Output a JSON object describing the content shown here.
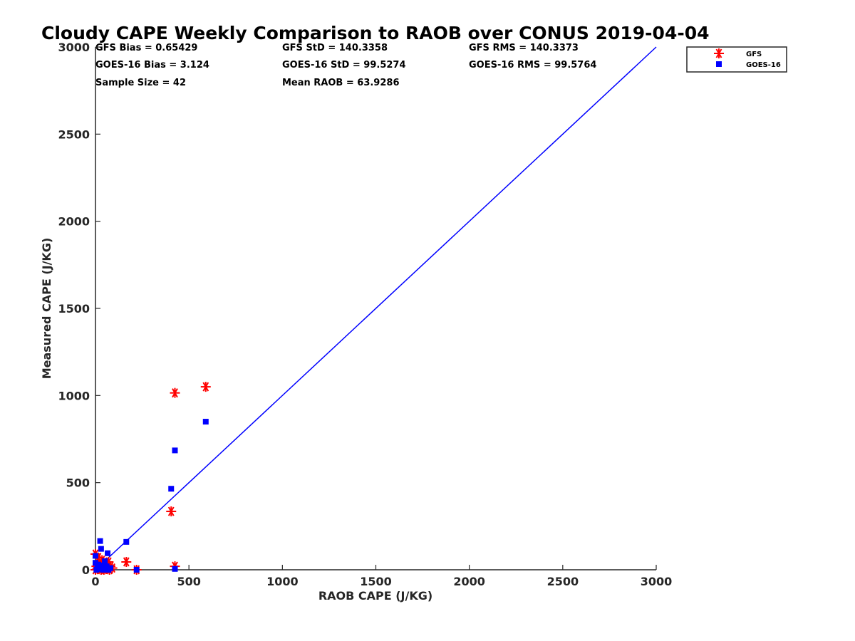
{
  "chart_data": {
    "type": "scatter",
    "title": "Cloudy CAPE Weekly Comparison to RAOB over CONUS 2019-04-04",
    "xlabel": "RAOB CAPE (J/KG)",
    "ylabel": "Measured CAPE (J/KG)",
    "xlim": [
      0,
      3000
    ],
    "ylim": [
      0,
      3000
    ],
    "xticks": [
      "0",
      "500",
      "1000",
      "1500",
      "2000",
      "2500",
      "3000"
    ],
    "yticks": [
      "0",
      "500",
      "1000",
      "1500",
      "2000",
      "2500",
      "3000"
    ],
    "grid": false,
    "legend_position": "top-right",
    "reference_line": {
      "x": [
        0,
        3000
      ],
      "y": [
        0,
        3000
      ],
      "color": "#0000ff"
    },
    "stats": {
      "gfs_bias": "GFS Bias = 0.65429",
      "gfs_std": "GFS StD = 140.3358",
      "gfs_rms": "GFS RMS = 140.3373",
      "goes_bias": "GOES-16 Bias = 3.124",
      "goes_std": "GOES-16 StD = 99.5274",
      "goes_rms": "GOES-16 RMS = 99.5764",
      "sample_size": "Sample Size = 42",
      "mean_raob": "Mean RAOB = 63.9286"
    },
    "series": [
      {
        "name": "GFS",
        "marker": "asterisk",
        "color": "#ff0000",
        "points": [
          [
            0,
            0
          ],
          [
            0,
            90
          ],
          [
            5,
            20
          ],
          [
            10,
            5
          ],
          [
            15,
            70
          ],
          [
            20,
            40
          ],
          [
            25,
            10
          ],
          [
            30,
            0
          ],
          [
            35,
            55
          ],
          [
            40,
            25
          ],
          [
            45,
            0
          ],
          [
            55,
            30
          ],
          [
            60,
            5
          ],
          [
            65,
            15
          ],
          [
            70,
            45
          ],
          [
            75,
            0
          ],
          [
            80,
            20
          ],
          [
            90,
            10
          ],
          [
            165,
            45
          ],
          [
            220,
            0
          ],
          [
            405,
            335
          ],
          [
            425,
            20
          ],
          [
            425,
            1015
          ],
          [
            590,
            1050
          ]
        ]
      },
      {
        "name": "GOES-16",
        "marker": "square",
        "color": "#0000ff",
        "points": [
          [
            0,
            80
          ],
          [
            0,
            40
          ],
          [
            5,
            0
          ],
          [
            10,
            15
          ],
          [
            15,
            30
          ],
          [
            20,
            5
          ],
          [
            25,
            165
          ],
          [
            30,
            120
          ],
          [
            35,
            25
          ],
          [
            40,
            0
          ],
          [
            45,
            10
          ],
          [
            50,
            50
          ],
          [
            60,
            20
          ],
          [
            65,
            95
          ],
          [
            70,
            0
          ],
          [
            80,
            10
          ],
          [
            165,
            160
          ],
          [
            220,
            0
          ],
          [
            405,
            465
          ],
          [
            425,
            685
          ],
          [
            425,
            5
          ],
          [
            590,
            850
          ]
        ]
      }
    ]
  }
}
